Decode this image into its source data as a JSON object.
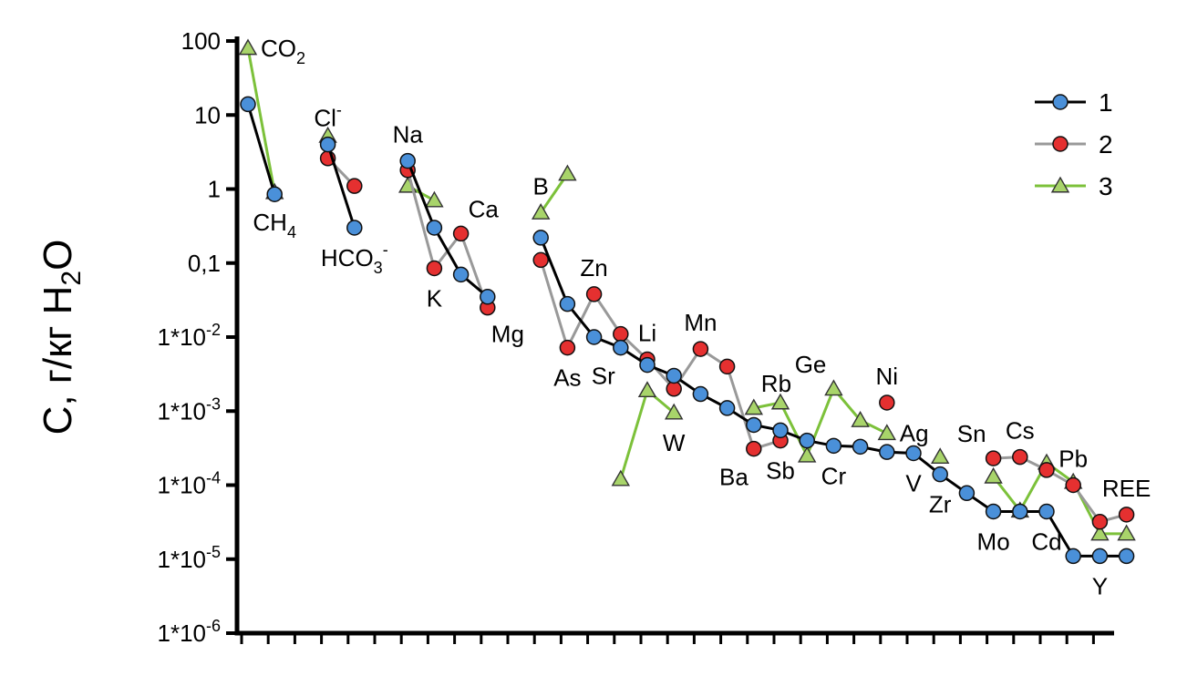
{
  "chart_data": {
    "type": "line",
    "ylabel": "C, г/кг H₂O",
    "y_scale": "log",
    "ylim": [
      1e-06,
      100
    ],
    "y_ticks": [
      {
        "value": 100,
        "label": "100"
      },
      {
        "value": 10,
        "label": "10"
      },
      {
        "value": 1,
        "label": "1"
      },
      {
        "value": 0.1,
        "label": "0,1"
      },
      {
        "value": 0.01,
        "label": "1*10-2"
      },
      {
        "value": 0.001,
        "label": "1*10-3"
      },
      {
        "value": 0.0001,
        "label": "1*10-4"
      },
      {
        "value": 1e-05,
        "label": "1*10-5"
      },
      {
        "value": 1e-06,
        "label": "1*10-6"
      }
    ],
    "x_count": 33,
    "legend": {
      "position": "top-right"
    },
    "series": [
      {
        "name": "1",
        "color": "#000000",
        "marker": "circle",
        "marker_color": "#4a90d9",
        "segments": [
          [
            [
              1,
              14
            ],
            [
              2,
              0.85
            ]
          ],
          [
            [
              4,
              4
            ],
            [
              5,
              0.3
            ]
          ],
          [
            [
              7,
              2.4
            ],
            [
              8,
              0.3
            ],
            [
              9,
              0.07
            ],
            [
              10,
              0.035
            ]
          ],
          [
            [
              12,
              0.22
            ],
            [
              13,
              0.028
            ],
            [
              14,
              0.01
            ],
            [
              15,
              0.0072
            ],
            [
              16,
              0.0042
            ],
            [
              17,
              0.003
            ],
            [
              18,
              0.0017
            ],
            [
              19,
              0.0011
            ],
            [
              20,
              0.00065
            ],
            [
              21,
              0.00055
            ],
            [
              22,
              0.0004
            ],
            [
              23,
              0.00034
            ],
            [
              24,
              0.00033
            ],
            [
              25,
              0.00028
            ],
            [
              26,
              0.00027
            ],
            [
              27,
              0.00014
            ],
            [
              28,
              7.8e-05
            ],
            [
              29,
              4.4e-05
            ],
            [
              30,
              4.4e-05
            ],
            [
              31,
              4.4e-05
            ],
            [
              32,
              1.1e-05
            ],
            [
              33,
              1.1e-05
            ],
            [
              34,
              1.1e-05
            ]
          ]
        ]
      },
      {
        "name": "2",
        "color": "#999999",
        "marker": "circle",
        "marker_color": "#e53030",
        "segments": [
          [
            [
              4,
              2.6
            ],
            [
              5,
              1.1
            ]
          ],
          [
            [
              7,
              1.8
            ],
            [
              8,
              0.085
            ],
            [
              9,
              0.25
            ],
            [
              10,
              0.025
            ]
          ],
          [
            [
              12,
              0.11
            ],
            [
              13,
              0.0072
            ],
            [
              14,
              0.038
            ],
            [
              15,
              0.011
            ],
            [
              16,
              0.005
            ],
            [
              17,
              0.002
            ],
            [
              18,
              0.0069
            ],
            [
              19,
              0.004
            ],
            [
              20,
              0.00031
            ],
            [
              21,
              0.0004
            ]
          ],
          [
            [
              25,
              0.0013
            ]
          ],
          [
            [
              29,
              0.00023
            ],
            [
              30,
              0.00024
            ],
            [
              31,
              0.00016
            ],
            [
              32,
              0.0001
            ],
            [
              33,
              3.2e-05
            ],
            [
              34,
              4e-05
            ]
          ]
        ]
      },
      {
        "name": "3",
        "color": "#7cc13a",
        "marker": "triangle",
        "marker_color": "#a8d46a",
        "segments": [
          [
            [
              1,
              80
            ],
            [
              2,
              0.9
            ]
          ],
          [
            [
              4,
              5.2
            ]
          ],
          [
            [
              7,
              1.1
            ],
            [
              8,
              0.7
            ]
          ],
          [
            [
              12,
              0.48
            ],
            [
              13,
              1.6
            ]
          ],
          [
            [
              15,
              0.00012
            ],
            [
              16,
              0.0019
            ],
            [
              17,
              0.00095
            ]
          ],
          [
            [
              20,
              0.0011
            ],
            [
              21,
              0.0013
            ],
            [
              22,
              0.00025
            ],
            [
              23,
              0.002
            ],
            [
              24,
              0.00075
            ],
            [
              25,
              0.0005
            ]
          ],
          [
            [
              27,
              0.00024
            ]
          ],
          [
            [
              29,
              0.00013
            ],
            [
              30,
              4.5e-05
            ],
            [
              31,
              0.0002
            ],
            [
              32,
              0.00011
            ],
            [
              33,
              2.2e-05
            ],
            [
              34,
              2.2e-05
            ]
          ]
        ]
      }
    ],
    "annotations": [
      {
        "text": "CO",
        "sub": "2",
        "sup": "",
        "x": 1,
        "y": 80,
        "pos": "right"
      },
      {
        "text": "CH",
        "sub": "4",
        "sup": "",
        "x": 2,
        "y": 0.9,
        "pos": "below"
      },
      {
        "text": "Cl",
        "sub": "",
        "sup": "-",
        "x": 4,
        "y": 4,
        "pos": "above"
      },
      {
        "text": "HCO",
        "sub": "3",
        "sup": "-",
        "x": 5,
        "y": 0.3,
        "pos": "below"
      },
      {
        "text": "Na",
        "sub": "",
        "sup": "",
        "x": 7,
        "y": 2.4,
        "pos": "above"
      },
      {
        "text": "K",
        "sub": "",
        "sup": "",
        "x": 8,
        "y": 0.085,
        "pos": "below"
      },
      {
        "text": "Ca",
        "sub": "",
        "sup": "",
        "x": 9,
        "y": 0.25,
        "pos": "above-right"
      },
      {
        "text": "Mg",
        "sub": "",
        "sup": "",
        "x": 10,
        "y": 0.025,
        "pos": "below-right"
      },
      {
        "text": "B",
        "sub": "",
        "sup": "",
        "x": 12,
        "y": 0.48,
        "pos": "above"
      },
      {
        "text": "Zn",
        "sub": "",
        "sup": "",
        "x": 14,
        "y": 0.038,
        "pos": "above"
      },
      {
        "text": "As",
        "sub": "",
        "sup": "",
        "x": 13,
        "y": 0.0072,
        "pos": "below"
      },
      {
        "text": "Sr",
        "sub": "",
        "sup": "",
        "x": 15,
        "y": 0.0072,
        "pos": "below-left"
      },
      {
        "text": "Li",
        "sub": "",
        "sup": "",
        "x": 16,
        "y": 0.005,
        "pos": "above"
      },
      {
        "text": "W",
        "sub": "",
        "sup": "",
        "x": 17,
        "y": 0.00095,
        "pos": "below"
      },
      {
        "text": "Mn",
        "sub": "",
        "sup": "",
        "x": 18,
        "y": 0.0069,
        "pos": "above"
      },
      {
        "text": "Rb",
        "sub": "",
        "sup": "",
        "x": 20,
        "y": 0.0011,
        "pos": "above-right"
      },
      {
        "text": "Ba",
        "sub": "",
        "sup": "",
        "x": 20,
        "y": 0.00031,
        "pos": "below-left"
      },
      {
        "text": "Sb",
        "sub": "",
        "sup": "",
        "x": 21,
        "y": 0.0004,
        "pos": "below"
      },
      {
        "text": "Ge",
        "sub": "",
        "sup": "",
        "x": 23,
        "y": 0.002,
        "pos": "above-left"
      },
      {
        "text": "Cr",
        "sub": "",
        "sup": "",
        "x": 23,
        "y": 0.00034,
        "pos": "below"
      },
      {
        "text": "Ni",
        "sub": "",
        "sup": "",
        "x": 25,
        "y": 0.0013,
        "pos": "above"
      },
      {
        "text": "Ag",
        "sub": "",
        "sup": "",
        "x": 25,
        "y": 0.0005,
        "pos": "right"
      },
      {
        "text": "V",
        "sub": "",
        "sup": "",
        "x": 26,
        "y": 0.00027,
        "pos": "below"
      },
      {
        "text": "Zr",
        "sub": "",
        "sup": "",
        "x": 27,
        "y": 0.00014,
        "pos": "below"
      },
      {
        "text": "Sn",
        "sub": "",
        "sup": "",
        "x": 29,
        "y": 0.00023,
        "pos": "above-left"
      },
      {
        "text": "Cs",
        "sub": "",
        "sup": "",
        "x": 30,
        "y": 0.00024,
        "pos": "above"
      },
      {
        "text": "Mo",
        "sub": "",
        "sup": "",
        "x": 29,
        "y": 4.4e-05,
        "pos": "below"
      },
      {
        "text": "Cd",
        "sub": "",
        "sup": "",
        "x": 31,
        "y": 4.4e-05,
        "pos": "below"
      },
      {
        "text": "Pb",
        "sub": "",
        "sup": "",
        "x": 32,
        "y": 0.0001,
        "pos": "above"
      },
      {
        "text": "REE",
        "sub": "",
        "sup": "",
        "x": 34,
        "y": 4e-05,
        "pos": "above"
      },
      {
        "text": "Y",
        "sub": "",
        "sup": "",
        "x": 33,
        "y": 1.1e-05,
        "pos": "below"
      }
    ]
  }
}
